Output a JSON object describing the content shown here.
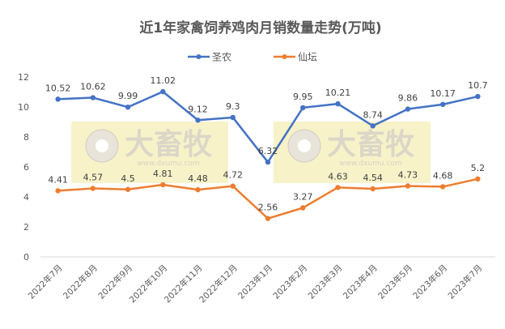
{
  "chart_data": {
    "type": "line",
    "title": "近1年家禽饲养鸡肉月销数量走势(万吨)",
    "xlabel": "",
    "ylabel": "",
    "ylim": [
      0,
      12
    ],
    "yticks": [
      0,
      2,
      4,
      6,
      8,
      10,
      12
    ],
    "grid": false,
    "legend": "top",
    "categories": [
      "2022年7月",
      "2022年8月",
      "2022年9月",
      "2022年10月",
      "2022年11月",
      "2022年12月",
      "2023年1月",
      "2023年2月",
      "2023年3月",
      "2023年4月",
      "2023年5月",
      "2023年6月",
      "2023年7月"
    ],
    "series": [
      {
        "name": "圣农",
        "color": "#4472C4",
        "values": [
          10.52,
          10.62,
          9.99,
          11.02,
          9.12,
          9.3,
          6.32,
          9.95,
          10.21,
          8.74,
          9.86,
          10.17,
          10.7
        ]
      },
      {
        "name": "仙坛",
        "color": "#ED7D31",
        "values": [
          4.41,
          4.57,
          4.5,
          4.81,
          4.48,
          4.72,
          2.56,
          3.27,
          4.63,
          4.54,
          4.73,
          4.68,
          5.2
        ]
      }
    ]
  },
  "watermark": {
    "logo_text": "大畜牧",
    "url": "www.dxumu.com"
  }
}
